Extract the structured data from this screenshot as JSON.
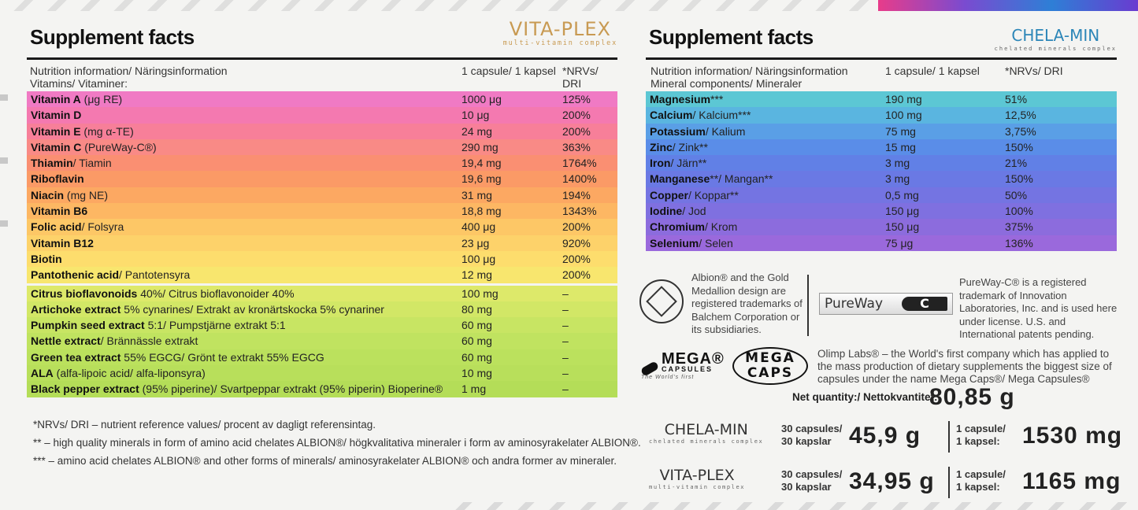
{
  "left": {
    "title": "Supplement facts",
    "brand": {
      "name": "VITA-PLEX",
      "sub": "multi-vitamin complex"
    },
    "header": {
      "info": "Nutrition information/ Näringsinformation",
      "amount": "1 capsule/ 1 kapsel",
      "nrv": "*NRVs/ DRI"
    },
    "subheader": "Vitamins/ Vitaminer:",
    "rows": [
      {
        "bold": "Vitamin A",
        "rest": " (μg RE)",
        "qty": "1000 μg",
        "nrv": "125%",
        "color": "#f07ac4"
      },
      {
        "bold": "Vitamin D",
        "rest": "",
        "qty": "10 μg",
        "nrv": "200%",
        "color": "#f479b0"
      },
      {
        "bold": "Vitamin E",
        "rest": " (mg α-TE)",
        "qty": "24 mg",
        "nrv": "200%",
        "color": "#f77f99"
      },
      {
        "bold": "Vitamin C",
        "rest": " (PureWay-C®)",
        "qty": "290 mg",
        "nrv": "363%",
        "color": "#f98a86"
      },
      {
        "bold": "Thiamin",
        "rest": "/ Tiamin",
        "qty": "19,4 mg",
        "nrv": "1764%",
        "color": "#fa8f72"
      },
      {
        "bold": "Riboflavin",
        "rest": "",
        "qty": "19,6 mg",
        "nrv": "1400%",
        "color": "#fb9a66"
      },
      {
        "bold": "Niacin",
        "rest": " (mg NE)",
        "qty": "31 mg",
        "nrv": "194%",
        "color": "#fca862"
      },
      {
        "bold": "Vitamin B6",
        "rest": "",
        "qty": "18,8 mg",
        "nrv": "1343%",
        "color": "#fdb763"
      },
      {
        "bold": "Folic acid",
        "rest": "/ Folsyra",
        "qty": "400 μg",
        "nrv": "200%",
        "color": "#fdc766"
      },
      {
        "bold": "Vitamin B12",
        "rest": "",
        "qty": "23 μg",
        "nrv": "920%",
        "color": "#fdd26a"
      },
      {
        "bold": "Biotin",
        "rest": "",
        "qty": "100 μg",
        "nrv": "200%",
        "color": "#fddd6d"
      },
      {
        "bold": "Pantothenic acid",
        "rest": "/ Pantotensyra",
        "qty": "12 mg",
        "nrv": "200%",
        "color": "#f8e66e"
      }
    ],
    "extracts": [
      {
        "bold": "Citrus bioflavonoids",
        "rest": " 40%/ Citrus bioflavonoider 40%",
        "qty": "100 mg",
        "nrv": "–",
        "color": "#dde96a"
      },
      {
        "bold": "Artichoke extract",
        "rest": " 5% cynarines/ Extrakt av kronärtskocka 5% cynariner",
        "qty": "80 mg",
        "nrv": "–",
        "color": "#d2e766"
      },
      {
        "bold": "Pumpkin seed extract",
        "rest": " 5:1/ Pumpstjärne extrakt 5:1",
        "qty": "60 mg",
        "nrv": "–",
        "color": "#c8e563"
      },
      {
        "bold": "Nettle extract",
        "rest": "/ Brännässle extrakt",
        "qty": "60 mg",
        "nrv": "–",
        "color": "#c0e360"
      },
      {
        "bold": "Green tea extract",
        "rest": " 55% EGCG/ Grönt te extrakt 55% EGCG",
        "qty": "60 mg",
        "nrv": "–",
        "color": "#bbe15d"
      },
      {
        "bold": "ALA",
        "rest": " (alfa-lipoic acid/ alfa-liponsyra)",
        "qty": "10 mg",
        "nrv": "–",
        "color": "#b8df5b"
      },
      {
        "bold": "Black pepper extract",
        "rest": " (95% piperine)/ Svartpeppar extrakt (95% piperin) Bioperine®",
        "qty": "1 mg",
        "nrv": "–",
        "color": "#b4dd58"
      }
    ],
    "notes": [
      "*NRVs/ DRI – nutrient reference values/ procent av dagligt referensintag.",
      "** – high quality minerals in form of amino acid chelates ALBION®/ högkvalitativa mineraler i form av aminosyrakelater ALBION®.",
      "*** – amino acid chelates ALBION® and other forms of minerals/ aminosyrakelater ALBION® och andra former av mineraler."
    ]
  },
  "right": {
    "title": "Supplement facts",
    "brand": {
      "name": "CHELA-MIN",
      "sub": "chelated minerals complex"
    },
    "header": {
      "info": "Nutrition information/ Näringsinformation",
      "amount": "1 capsule/ 1 kapsel",
      "nrv": "*NRVs/ DRI"
    },
    "subheader": "Mineral components/ Mineraler",
    "rows": [
      {
        "bold": "Magnesium",
        "rest": "***",
        "qty": "190 mg",
        "nrv": "51%",
        "color": "#5cc7d4"
      },
      {
        "bold": "Calcium",
        "rest": "/ Kalcium***",
        "qty": "100 mg",
        "nrv": "12,5%",
        "color": "#5ab5e0"
      },
      {
        "bold": "Potassium",
        "rest": "/ Kalium",
        "qty": "75 mg",
        "nrv": "3,75%",
        "color": "#5a9fe6"
      },
      {
        "bold": "Zinc",
        "rest": "/ Zink**",
        "qty": "15 mg",
        "nrv": "150%",
        "color": "#5a8de8"
      },
      {
        "bold": "Iron",
        "rest": "/ Järn**",
        "qty": "3 mg",
        "nrv": "21%",
        "color": "#6180e6"
      },
      {
        "bold": "Manganese",
        "rest": "**/ Mangan**",
        "qty": "3 mg",
        "nrv": "150%",
        "color": "#6a79e4"
      },
      {
        "bold": "Copper",
        "rest": "/ Koppar**",
        "qty": "0,5 mg",
        "nrv": "50%",
        "color": "#7474e2"
      },
      {
        "bold": "Iodine",
        "rest": "/ Jod",
        "qty": "150 μg",
        "nrv": "100%",
        "color": "#7f70e0"
      },
      {
        "bold": "Chromium",
        "rest": "/ Krom",
        "qty": "150 μg",
        "nrv": "375%",
        "color": "#8c6cdd"
      },
      {
        "bold": "Selenium",
        "rest": "/ Selen",
        "qty": "75 μg",
        "nrv": "136%",
        "color": "#9a69dc"
      }
    ],
    "albion_text": "Albion® and the Gold Medallion design are registered trademarks of Balchem Corporation or its subsidiaries.",
    "albion_logo": "ALBION MINERALS",
    "pureway_logo": "PureWay",
    "pureway_c": "C",
    "pureway_text": "PureWay-C® is a registered trademark of Innovation Laboratories, Inc. and is used here under license. U.S. and International patents pending.",
    "mega1": {
      "big": "MEGA®",
      "small": "CAPSULES",
      "tag": "The World's first"
    },
    "mega2": {
      "line1": "MEGA",
      "line2": "CAPS"
    },
    "olimp_text": "Olimp Labs® – the World's first company which has applied to the mass production of dietary supplements the biggest size of capsules under the name Mega Caps®/ Mega Capsules®",
    "net_label": "Net quantity:/ Nettokvantitet:",
    "net_value": "80,85 g",
    "products": [
      {
        "logo": "CHELA-MIN",
        "logo_sub": "chelated minerals complex",
        "caps_a": "30 capsules/",
        "caps_b": "30 kapslar",
        "weight": "45,9 g",
        "per_a": "1 capsule/",
        "per_b": "1 kapsel:",
        "per_weight": "1530 mg"
      },
      {
        "logo": "VITA-PLEX",
        "logo_sub": "multi-vitamin complex",
        "caps_a": "30 capsules/",
        "caps_b": "30 kapslar",
        "weight": "34,95 g",
        "per_a": "1 capsule/",
        "per_b": "1 kapsel:",
        "per_weight": "1165 mg"
      }
    ]
  }
}
